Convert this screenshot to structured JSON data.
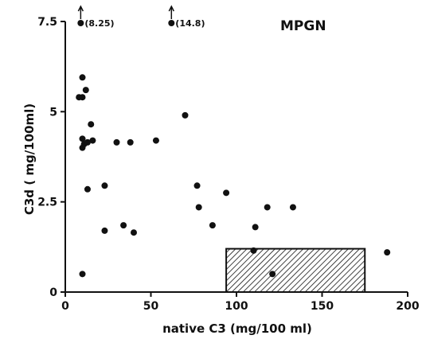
{
  "chart_data": {
    "type": "scatter",
    "title": "MPGN",
    "xlabel": "native C3 (mg/100 ml)",
    "ylabel": "C3d ( mg/100ml)",
    "xlim": [
      0,
      200
    ],
    "ylim": [
      0,
      7.5
    ],
    "x_ticks": [
      0,
      50,
      100,
      150,
      200
    ],
    "y_ticks": [
      0,
      2.5,
      5,
      7.5
    ],
    "x_tick_labels": [
      "0",
      "50",
      "100",
      "150",
      "200"
    ],
    "y_tick_labels": [
      "0",
      "2.5",
      "5",
      "7.5"
    ],
    "points": [
      {
        "x": 8,
        "y": 5.4
      },
      {
        "x": 10,
        "y": 5.95
      },
      {
        "x": 10,
        "y": 5.4
      },
      {
        "x": 12,
        "y": 5.6
      },
      {
        "x": 15,
        "y": 4.65
      },
      {
        "x": 10,
        "y": 4.25
      },
      {
        "x": 10,
        "y": 4.0
      },
      {
        "x": 11,
        "y": 4.1
      },
      {
        "x": 13,
        "y": 4.15
      },
      {
        "x": 16,
        "y": 4.2
      },
      {
        "x": 30,
        "y": 4.15
      },
      {
        "x": 38,
        "y": 4.15
      },
      {
        "x": 53,
        "y": 4.2
      },
      {
        "x": 70,
        "y": 4.9
      },
      {
        "x": 13,
        "y": 2.85
      },
      {
        "x": 23,
        "y": 2.95
      },
      {
        "x": 23,
        "y": 1.7
      },
      {
        "x": 34,
        "y": 1.85
      },
      {
        "x": 40,
        "y": 1.65
      },
      {
        "x": 77,
        "y": 2.95
      },
      {
        "x": 78,
        "y": 2.35
      },
      {
        "x": 94,
        "y": 2.75
      },
      {
        "x": 86,
        "y": 1.85
      },
      {
        "x": 111,
        "y": 1.8
      },
      {
        "x": 118,
        "y": 2.35
      },
      {
        "x": 133,
        "y": 2.35
      },
      {
        "x": 110,
        "y": 1.15
      },
      {
        "x": 121,
        "y": 0.5
      },
      {
        "x": 188,
        "y": 1.1
      },
      {
        "x": 10,
        "y": 0.5
      }
    ],
    "offscale_points": [
      {
        "x": 9,
        "y": 8.25,
        "label": "(8.25)"
      },
      {
        "x": 62,
        "y": 14.8,
        "label": "(14.8)"
      }
    ],
    "reference_range": {
      "x0": 94,
      "x1": 175,
      "y0": 0,
      "y1": 1.2
    },
    "grid": false
  }
}
